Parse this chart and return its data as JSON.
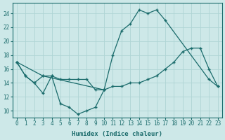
{
  "xlabel": "Humidex (Indice chaleur)",
  "bg_color": "#cde8e8",
  "grid_color": "#afd4d4",
  "line_color": "#1a6b6b",
  "xlim": [
    -0.5,
    23.5
  ],
  "ylim": [
    9,
    25.5
  ],
  "xticks": [
    0,
    1,
    2,
    3,
    4,
    5,
    6,
    7,
    8,
    9,
    10,
    11,
    12,
    13,
    14,
    15,
    16,
    17,
    18,
    19,
    20,
    21,
    22,
    23
  ],
  "yticks": [
    10,
    12,
    14,
    16,
    18,
    20,
    22,
    24
  ],
  "line1_x": [
    0,
    1,
    2,
    3,
    4,
    5,
    6,
    7,
    8,
    9,
    10
  ],
  "line1_y": [
    17,
    15,
    14,
    12.5,
    15,
    11,
    10.5,
    9.5,
    10,
    10.5,
    13
  ],
  "line2_x": [
    0,
    1,
    2,
    3,
    10,
    11,
    12,
    13,
    14,
    15,
    16,
    17,
    22,
    23
  ],
  "line2_y": [
    17,
    15,
    14,
    15,
    13,
    18,
    21.5,
    22.5,
    24.5,
    24,
    24.5,
    23,
    14.5,
    13.5
  ],
  "line3_x": [
    0,
    3,
    4,
    5,
    6,
    7,
    8,
    9,
    10,
    11,
    12,
    13,
    14,
    15,
    16,
    17,
    18,
    19,
    20,
    21,
    22,
    23
  ],
  "line3_y": [
    17,
    15,
    15,
    14.5,
    14.5,
    14.5,
    14.5,
    13,
    13,
    13.5,
    13.5,
    14,
    14,
    14.5,
    15,
    16,
    17,
    18.5,
    19,
    19,
    16,
    13.5
  ]
}
